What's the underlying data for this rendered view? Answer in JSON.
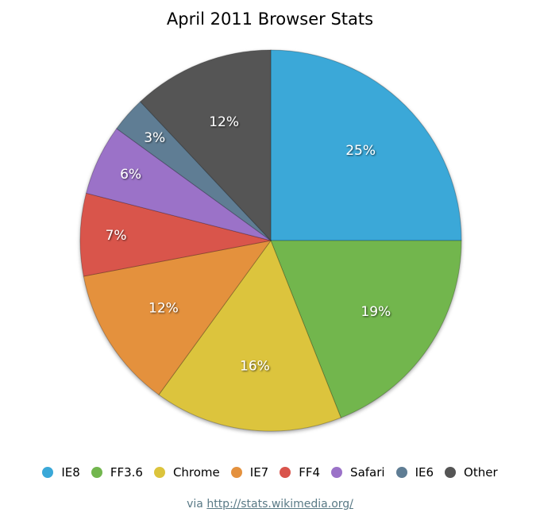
{
  "chart_data": {
    "type": "pie",
    "title": "April 2011 Browser Stats",
    "slices": [
      {
        "label": "IE8",
        "value": 25,
        "color": "#3aa8d8"
      },
      {
        "label": "FF3.6",
        "value": 19,
        "color": "#72b64e"
      },
      {
        "label": "Chrome",
        "value": 16,
        "color": "#dcc43c"
      },
      {
        "label": "IE7",
        "value": 12,
        "color": "#e4913e"
      },
      {
        "label": "FF4",
        "value": 7,
        "color": "#d9544c"
      },
      {
        "label": "Safari",
        "value": 6,
        "color": "#9b72c8"
      },
      {
        "label": "IE6",
        "value": 3,
        "color": "#5f7d94"
      },
      {
        "label": "Other",
        "value": 12,
        "color": "#555555"
      }
    ],
    "value_suffix": "%",
    "legend_position": "bottom"
  },
  "source": {
    "prefix": "via",
    "link_text": "http://stats.wikimedia.org/"
  }
}
